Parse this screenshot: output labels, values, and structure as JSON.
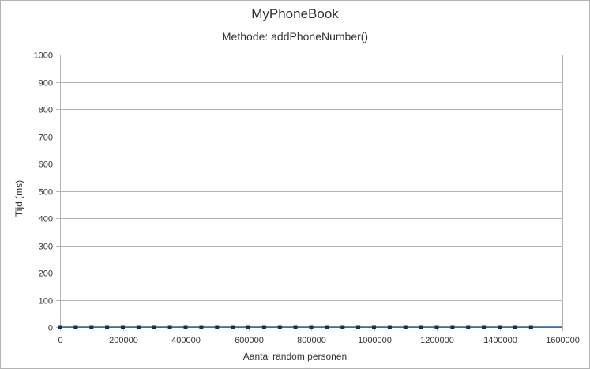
{
  "chart_data": {
    "type": "line",
    "title": "MyPhoneBook",
    "subtitle": "Methode: addPhoneNumber()",
    "xlabel": "Aantal random personen",
    "ylabel": "Tijd (ms)",
    "xlim": [
      0,
      1600000
    ],
    "ylim": [
      0,
      1000
    ],
    "xticks": [
      0,
      200000,
      400000,
      600000,
      800000,
      1000000,
      1200000,
      1400000,
      1600000
    ],
    "yticks": [
      0,
      100,
      200,
      300,
      400,
      500,
      600,
      700,
      800,
      900,
      1000
    ],
    "grid": true,
    "series": [
      {
        "color": "#004586",
        "marker_color": "#1a2f4f",
        "x": [
          0,
          50000,
          100000,
          150000,
          200000,
          250000,
          300000,
          350000,
          400000,
          450000,
          500000,
          550000,
          600000,
          650000,
          700000,
          750000,
          800000,
          850000,
          900000,
          950000,
          1000000,
          1050000,
          1100000,
          1150000,
          1200000,
          1250000,
          1300000,
          1350000,
          1400000,
          1450000,
          1500000
        ],
        "y": [
          0,
          0,
          0,
          0,
          0,
          0,
          0,
          0,
          0,
          0,
          0,
          0,
          0,
          0,
          0,
          0,
          0,
          0,
          0,
          0,
          0,
          0,
          0,
          0,
          0,
          0,
          0,
          0,
          0,
          0,
          0
        ]
      }
    ]
  }
}
